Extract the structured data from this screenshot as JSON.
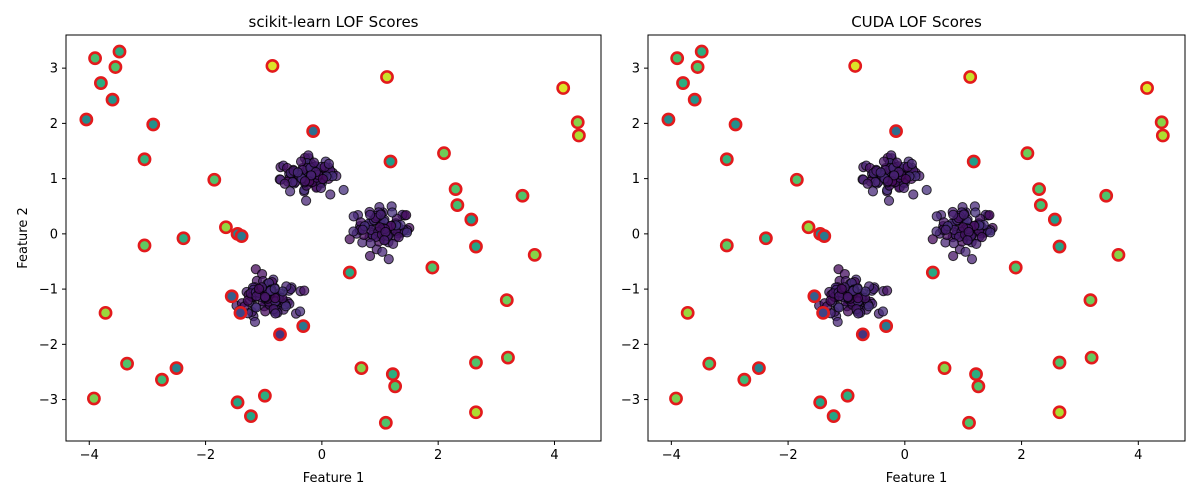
{
  "chart_data": [
    {
      "type": "scatter",
      "title": "scikit-learn LOF Scores",
      "xlabel": "Feature 1",
      "ylabel": "Feature 2",
      "xlim": [
        -4.4,
        4.8
      ],
      "ylim": [
        -3.75,
        3.6
      ],
      "xticks": [
        -4,
        -2,
        0,
        2,
        4
      ],
      "yticks": [
        -3,
        -2,
        -1,
        0,
        1,
        2,
        3
      ],
      "colormap": "viridis",
      "outlier_edge_color": "#e31a1c",
      "inlier_edge_color": "#000000",
      "clusters": [
        {
          "center": [
            -0.2,
            1.05
          ],
          "spread": [
            0.22,
            0.17
          ],
          "count": 100
        },
        {
          "center": [
            1.05,
            0.08
          ],
          "spread": [
            0.22,
            0.16
          ],
          "count": 100
        },
        {
          "center": [
            -0.95,
            -1.18
          ],
          "spread": [
            0.22,
            0.17
          ],
          "count": 100
        }
      ],
      "outliers": [
        {
          "x": -3.9,
          "y": 3.18,
          "score": 0.7
        },
        {
          "x": -3.48,
          "y": 3.3,
          "score": 0.62
        },
        {
          "x": -3.55,
          "y": 3.02,
          "score": 0.72
        },
        {
          "x": -3.8,
          "y": 2.73,
          "score": 0.62
        },
        {
          "x": -3.6,
          "y": 2.43,
          "score": 0.52
        },
        {
          "x": -4.05,
          "y": 2.07,
          "score": 0.48
        },
        {
          "x": -2.9,
          "y": 1.98,
          "score": 0.5
        },
        {
          "x": -3.05,
          "y": 1.35,
          "score": 0.65
        },
        {
          "x": -1.85,
          "y": 0.98,
          "score": 0.72
        },
        {
          "x": -0.15,
          "y": 1.86,
          "score": 0.35
        },
        {
          "x": -0.85,
          "y": 3.04,
          "score": 0.95
        },
        {
          "x": 1.12,
          "y": 2.84,
          "score": 0.92
        },
        {
          "x": 1.18,
          "y": 1.31,
          "score": 0.55
        },
        {
          "x": 2.1,
          "y": 1.46,
          "score": 0.78
        },
        {
          "x": 4.15,
          "y": 2.64,
          "score": 0.95
        },
        {
          "x": 4.4,
          "y": 2.02,
          "score": 0.82
        },
        {
          "x": 4.42,
          "y": 1.78,
          "score": 0.88
        },
        {
          "x": 2.3,
          "y": 0.81,
          "score": 0.72
        },
        {
          "x": 2.33,
          "y": 0.52,
          "score": 0.7
        },
        {
          "x": 3.45,
          "y": 0.69,
          "score": 0.72
        },
        {
          "x": 2.57,
          "y": 0.26,
          "score": 0.55
        },
        {
          "x": 2.65,
          "y": -0.23,
          "score": 0.58
        },
        {
          "x": 3.66,
          "y": -0.38,
          "score": 0.82
        },
        {
          "x": -1.65,
          "y": 0.12,
          "score": 0.84
        },
        {
          "x": -1.45,
          "y": 0.0,
          "score": 0.45
        },
        {
          "x": -1.38,
          "y": -0.04,
          "score": 0.4
        },
        {
          "x": -3.05,
          "y": -0.21,
          "score": 0.75
        },
        {
          "x": -2.38,
          "y": -0.08,
          "score": 0.62
        },
        {
          "x": 0.48,
          "y": -0.7,
          "score": 0.6
        },
        {
          "x": 1.9,
          "y": -0.61,
          "score": 0.72
        },
        {
          "x": 3.18,
          "y": -1.2,
          "score": 0.78
        },
        {
          "x": -1.55,
          "y": -1.13,
          "score": 0.3
        },
        {
          "x": -1.4,
          "y": -1.43,
          "score": 0.2
        },
        {
          "x": -3.72,
          "y": -1.43,
          "score": 0.85
        },
        {
          "x": -0.72,
          "y": -1.82,
          "score": 0.15
        },
        {
          "x": -0.32,
          "y": -1.67,
          "score": 0.4
        },
        {
          "x": -3.35,
          "y": -2.35,
          "score": 0.72
        },
        {
          "x": -2.5,
          "y": -2.43,
          "score": 0.45
        },
        {
          "x": -2.75,
          "y": -2.64,
          "score": 0.68
        },
        {
          "x": 0.68,
          "y": -2.43,
          "score": 0.82
        },
        {
          "x": 1.22,
          "y": -2.54,
          "score": 0.62
        },
        {
          "x": 1.26,
          "y": -2.76,
          "score": 0.72
        },
        {
          "x": 2.65,
          "y": -2.33,
          "score": 0.72
        },
        {
          "x": 3.2,
          "y": -2.24,
          "score": 0.76
        },
        {
          "x": -3.92,
          "y": -2.98,
          "score": 0.8
        },
        {
          "x": -1.45,
          "y": -3.05,
          "score": 0.58
        },
        {
          "x": -0.98,
          "y": -2.93,
          "score": 0.62
        },
        {
          "x": -1.22,
          "y": -3.3,
          "score": 0.58
        },
        {
          "x": 1.1,
          "y": -3.42,
          "score": 0.72
        },
        {
          "x": 2.65,
          "y": -3.23,
          "score": 0.88
        }
      ]
    },
    {
      "type": "scatter",
      "title": "CUDA LOF Scores",
      "xlabel": "Feature 1",
      "ylabel": "",
      "xlim": [
        -4.4,
        4.8
      ],
      "ylim": [
        -3.75,
        3.6
      ],
      "xticks": [
        -4,
        -2,
        0,
        2,
        4
      ],
      "yticks": [
        -3,
        -2,
        -1,
        0,
        1,
        2,
        3
      ],
      "colormap": "viridis",
      "outlier_edge_color": "#e31a1c",
      "inlier_edge_color": "#000000",
      "clusters": [
        {
          "center": [
            -0.2,
            1.05
          ],
          "spread": [
            0.22,
            0.17
          ],
          "count": 100
        },
        {
          "center": [
            1.05,
            0.08
          ],
          "spread": [
            0.22,
            0.16
          ],
          "count": 100
        },
        {
          "center": [
            -0.95,
            -1.18
          ],
          "spread": [
            0.22,
            0.17
          ],
          "count": 100
        }
      ],
      "outliers": [
        {
          "x": -3.9,
          "y": 3.18,
          "score": 0.7
        },
        {
          "x": -3.48,
          "y": 3.3,
          "score": 0.62
        },
        {
          "x": -3.55,
          "y": 3.02,
          "score": 0.72
        },
        {
          "x": -3.8,
          "y": 2.73,
          "score": 0.62
        },
        {
          "x": -3.6,
          "y": 2.43,
          "score": 0.52
        },
        {
          "x": -4.05,
          "y": 2.07,
          "score": 0.48
        },
        {
          "x": -2.9,
          "y": 1.98,
          "score": 0.5
        },
        {
          "x": -3.05,
          "y": 1.35,
          "score": 0.65
        },
        {
          "x": -1.85,
          "y": 0.98,
          "score": 0.72
        },
        {
          "x": -0.15,
          "y": 1.86,
          "score": 0.35
        },
        {
          "x": -0.85,
          "y": 3.04,
          "score": 0.95
        },
        {
          "x": 1.12,
          "y": 2.84,
          "score": 0.92
        },
        {
          "x": 1.18,
          "y": 1.31,
          "score": 0.55
        },
        {
          "x": 2.1,
          "y": 1.46,
          "score": 0.78
        },
        {
          "x": 4.15,
          "y": 2.64,
          "score": 0.95
        },
        {
          "x": 4.4,
          "y": 2.02,
          "score": 0.82
        },
        {
          "x": 4.42,
          "y": 1.78,
          "score": 0.88
        },
        {
          "x": 2.3,
          "y": 0.81,
          "score": 0.72
        },
        {
          "x": 2.33,
          "y": 0.52,
          "score": 0.7
        },
        {
          "x": 3.45,
          "y": 0.69,
          "score": 0.72
        },
        {
          "x": 2.57,
          "y": 0.26,
          "score": 0.55
        },
        {
          "x": 2.65,
          "y": -0.23,
          "score": 0.58
        },
        {
          "x": 3.66,
          "y": -0.38,
          "score": 0.82
        },
        {
          "x": -1.65,
          "y": 0.12,
          "score": 0.84
        },
        {
          "x": -1.45,
          "y": 0.0,
          "score": 0.45
        },
        {
          "x": -1.38,
          "y": -0.04,
          "score": 0.4
        },
        {
          "x": -3.05,
          "y": -0.21,
          "score": 0.75
        },
        {
          "x": -2.38,
          "y": -0.08,
          "score": 0.62
        },
        {
          "x": 0.48,
          "y": -0.7,
          "score": 0.6
        },
        {
          "x": 1.9,
          "y": -0.61,
          "score": 0.72
        },
        {
          "x": 3.18,
          "y": -1.2,
          "score": 0.78
        },
        {
          "x": -1.55,
          "y": -1.13,
          "score": 0.3
        },
        {
          "x": -1.4,
          "y": -1.43,
          "score": 0.2
        },
        {
          "x": -3.72,
          "y": -1.43,
          "score": 0.85
        },
        {
          "x": -0.72,
          "y": -1.82,
          "score": 0.15
        },
        {
          "x": -0.32,
          "y": -1.67,
          "score": 0.4
        },
        {
          "x": -3.35,
          "y": -2.35,
          "score": 0.72
        },
        {
          "x": -2.5,
          "y": -2.43,
          "score": 0.45
        },
        {
          "x": -2.75,
          "y": -2.64,
          "score": 0.68
        },
        {
          "x": 0.68,
          "y": -2.43,
          "score": 0.82
        },
        {
          "x": 1.22,
          "y": -2.54,
          "score": 0.62
        },
        {
          "x": 1.26,
          "y": -2.76,
          "score": 0.72
        },
        {
          "x": 2.65,
          "y": -2.33,
          "score": 0.72
        },
        {
          "x": 3.2,
          "y": -2.24,
          "score": 0.76
        },
        {
          "x": -3.92,
          "y": -2.98,
          "score": 0.8
        },
        {
          "x": -1.45,
          "y": -3.05,
          "score": 0.58
        },
        {
          "x": -0.98,
          "y": -2.93,
          "score": 0.62
        },
        {
          "x": -1.22,
          "y": -3.3,
          "score": 0.58
        },
        {
          "x": 1.1,
          "y": -3.42,
          "score": 0.72
        },
        {
          "x": 2.65,
          "y": -3.23,
          "score": 0.88
        }
      ]
    }
  ]
}
